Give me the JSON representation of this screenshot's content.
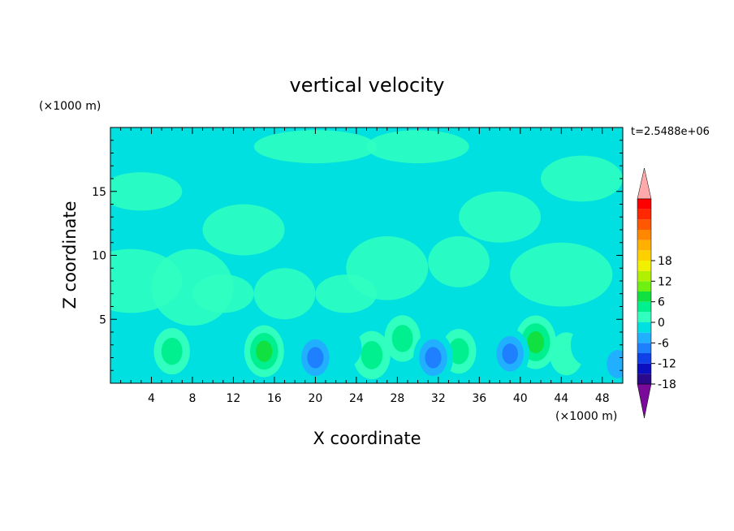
{
  "chart_data": {
    "type": "heatmap",
    "title": "vertical velocity",
    "xlabel": "X coordinate",
    "ylabel": "Z coordinate",
    "x_unit": "(×1000 m)",
    "y_unit": "(×1000 m)",
    "time_label": "t=2.5488e+06",
    "xlim": [
      0,
      50
    ],
    "ylim": [
      0,
      20
    ],
    "x_ticks": [
      "4",
      "8",
      "12",
      "16",
      "20",
      "24",
      "28",
      "32",
      "36",
      "40",
      "44",
      "48"
    ],
    "y_ticks": [
      "5",
      "10",
      "15"
    ],
    "colorbar": {
      "ticks": [
        "18",
        "12",
        "6",
        "0",
        "-6",
        "-12",
        "-18"
      ],
      "range": [
        -21,
        21
      ],
      "step": 3,
      "colors": [
        "#7a0a9a",
        "#2a0a8a",
        "#0a10c0",
        "#1040e8",
        "#1e80ff",
        "#20b0ff",
        "#00e0e0",
        "#30ffc0",
        "#00f090",
        "#10e040",
        "#70f010",
        "#b0f000",
        "#f0f000",
        "#ffd000",
        "#ffb000",
        "#ff8800",
        "#ff5800",
        "#ff2800",
        "#ff0000",
        "#ffaaaa"
      ]
    },
    "features": [
      {
        "x": 6.0,
        "z": 2.5,
        "value": 6
      },
      {
        "x": 15.0,
        "z": 2.5,
        "value": 9
      },
      {
        "x": 25.5,
        "z": 2.2,
        "value": 7
      },
      {
        "x": 28.5,
        "z": 3.5,
        "value": 6
      },
      {
        "x": 34.0,
        "z": 2.5,
        "value": 5
      },
      {
        "x": 41.5,
        "z": 3.2,
        "value": 10
      },
      {
        "x": 44.5,
        "z": 2.3,
        "value": 4
      },
      {
        "x": 20.0,
        "z": 2.0,
        "value": -9
      },
      {
        "x": 31.5,
        "z": 2.0,
        "value": -9
      },
      {
        "x": 39.0,
        "z": 2.3,
        "value": -8
      },
      {
        "x": 49.5,
        "z": 1.5,
        "value": -7
      },
      {
        "x": 9.5,
        "z": 2.5,
        "value": -4
      },
      {
        "x": 1.5,
        "z": 3.0,
        "value": -3
      },
      {
        "x": 23.0,
        "z": 2.8,
        "value": -2
      },
      {
        "x": 46.5,
        "z": 3.0,
        "value": -3
      }
    ]
  }
}
